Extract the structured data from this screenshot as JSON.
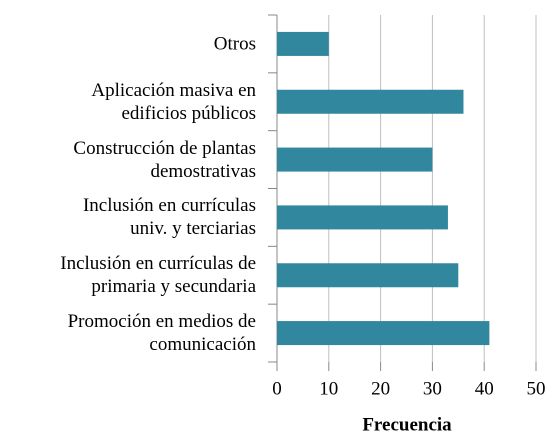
{
  "chart_data": {
    "type": "barh",
    "categories": [
      "Otros",
      "Aplicación masiva en\nedificios públicos",
      "Construcción de plantas\ndemostrativas",
      "Inclusión en currículas\nuniv. y terciarias",
      "Inclusión en currículas de\nprimaria y secundaria",
      "Promoción en medios de\ncomunicación"
    ],
    "values": [
      10,
      36,
      30,
      33,
      35,
      41
    ],
    "color": "#31879d",
    "xlabel": "Frecuencia",
    "xlim": [
      0,
      50
    ],
    "xticks": [
      0,
      10,
      20,
      30,
      40,
      50
    ],
    "grid": true
  }
}
